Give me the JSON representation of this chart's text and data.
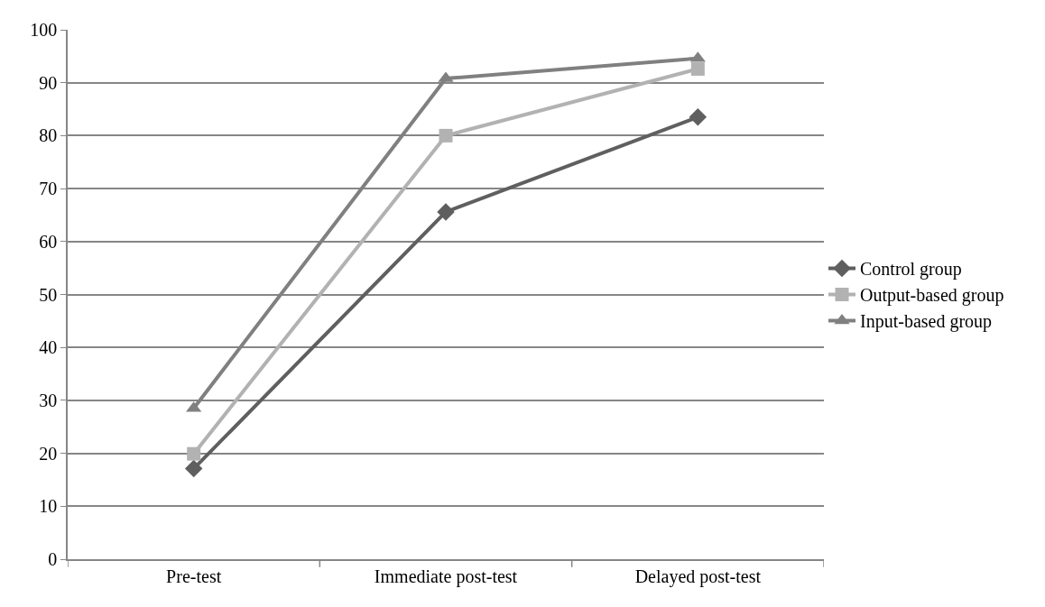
{
  "chart_data": {
    "type": "line",
    "categories": [
      "Pre-test",
      "Immediate post-test",
      "Delayed post-test"
    ],
    "series": [
      {
        "name": "Control group",
        "color": "#5f5f5f",
        "marker": "diamond",
        "values": [
          17.1,
          65.6,
          83.5
        ]
      },
      {
        "name": "Output-based group",
        "color": "#b2b2b2",
        "marker": "square",
        "values": [
          19.9,
          80.0,
          92.6
        ]
      },
      {
        "name": "Input-based group",
        "color": "#808080",
        "marker": "triangle",
        "values": [
          28.5,
          90.8,
          94.6
        ]
      }
    ],
    "ylim": [
      0,
      100
    ],
    "yticks": [
      0,
      10,
      20,
      30,
      40,
      50,
      60,
      70,
      80,
      90,
      100
    ],
    "grid": "y",
    "legend": "right",
    "line_style": "solid"
  }
}
